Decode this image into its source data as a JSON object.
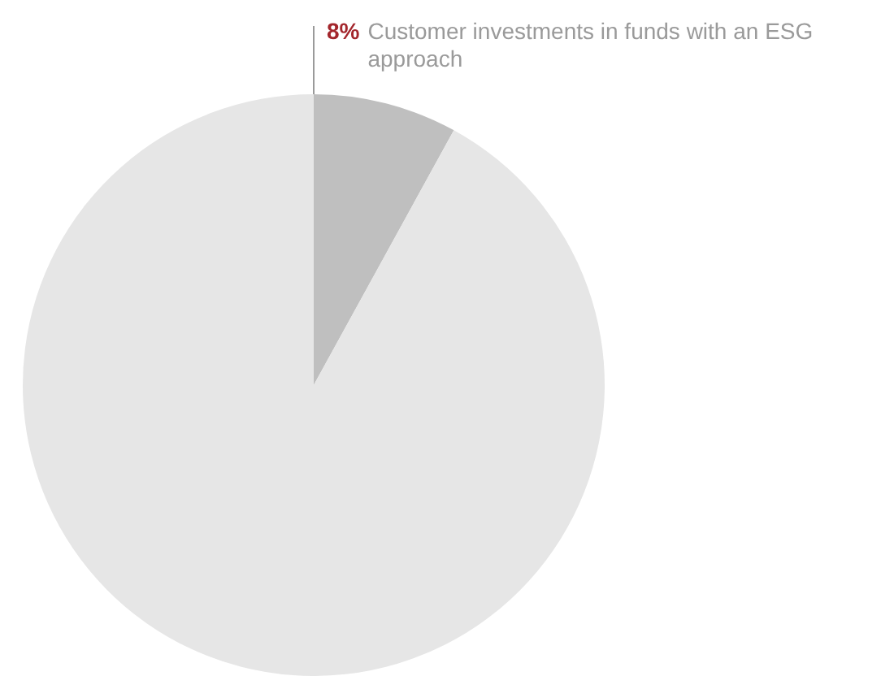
{
  "chart_data": {
    "type": "pie",
    "categories": [
      "Customer investments in funds with an ESG approach",
      null
    ],
    "values": [
      8,
      92
    ],
    "colors": [
      "#bfbfbf",
      "#e6e6e6"
    ],
    "value_labels": [
      "8%",
      null
    ],
    "legend": false
  }
}
